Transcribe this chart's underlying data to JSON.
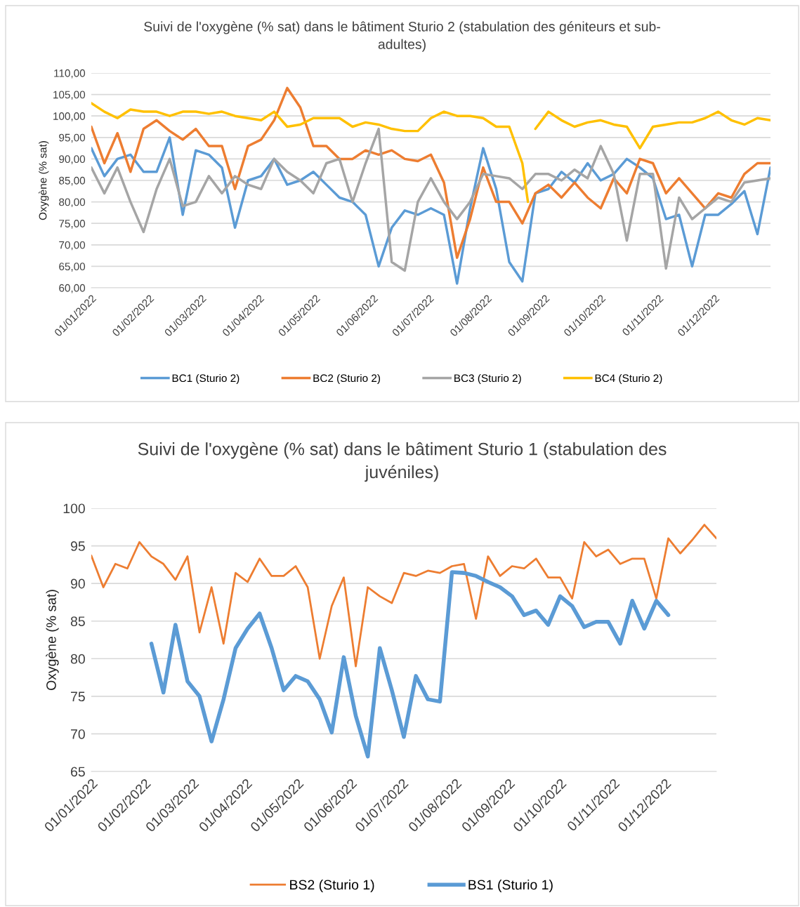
{
  "chart_data": [
    {
      "type": "line",
      "title": "Suivi de l'oxygène (% sat) dans le bâtiment Sturio 2 (stabulation des géniteurs et sub-\nadultes)",
      "ylabel": "Oxygène (% sat)",
      "grid": "y",
      "legend": "bottom",
      "x": [
        "2022-01-01",
        "2022-01-08",
        "2022-01-15",
        "2022-01-22",
        "2022-01-29",
        "2022-02-05",
        "2022-02-12",
        "2022-02-19",
        "2022-02-26",
        "2022-03-05",
        "2022-03-12",
        "2022-03-19",
        "2022-03-26",
        "2022-04-02",
        "2022-04-09",
        "2022-04-16",
        "2022-04-23",
        "2022-04-30",
        "2022-05-07",
        "2022-05-14",
        "2022-05-21",
        "2022-05-28",
        "2022-06-04",
        "2022-06-11",
        "2022-06-18",
        "2022-06-25",
        "2022-07-02",
        "2022-07-09",
        "2022-07-16",
        "2022-07-23",
        "2022-07-30",
        "2022-08-06",
        "2022-08-13",
        "2022-08-20",
        "2022-08-27",
        "2022-09-03",
        "2022-09-10",
        "2022-09-17",
        "2022-09-24",
        "2022-10-01",
        "2022-10-08",
        "2022-10-15",
        "2022-10-22",
        "2022-10-29",
        "2022-11-05",
        "2022-11-12",
        "2022-11-19",
        "2022-11-26",
        "2022-12-03",
        "2022-12-10",
        "2022-12-17",
        "2022-12-24",
        "2022-12-31"
      ],
      "xlim": [
        "2022-01-01",
        "2022-12-31"
      ],
      "xticks": [
        {
          "value": "2022-01-01",
          "label": "01/01/2022"
        },
        {
          "value": "2022-02-01",
          "label": "01/02/2022"
        },
        {
          "value": "2022-03-01",
          "label": "01/03/2022"
        },
        {
          "value": "2022-04-01",
          "label": "01/04/2022"
        },
        {
          "value": "2022-05-01",
          "label": "01/05/2022"
        },
        {
          "value": "2022-06-01",
          "label": "01/06/2022"
        },
        {
          "value": "2022-07-01",
          "label": "01/07/2022"
        },
        {
          "value": "2022-08-01",
          "label": "01/08/2022"
        },
        {
          "value": "2022-09-01",
          "label": "01/09/2022"
        },
        {
          "value": "2022-10-01",
          "label": "01/10/2022"
        },
        {
          "value": "2022-11-01",
          "label": "01/11/2022"
        },
        {
          "value": "2022-12-01",
          "label": "01/12/2022"
        }
      ],
      "ylim": [
        60,
        110
      ],
      "yticks": [
        {
          "value": 60,
          "label": "60,00"
        },
        {
          "value": 65,
          "label": "65,00"
        },
        {
          "value": 70,
          "label": "70,00"
        },
        {
          "value": 75,
          "label": "75,00"
        },
        {
          "value": 80,
          "label": "80,00"
        },
        {
          "value": 85,
          "label": "85,00"
        },
        {
          "value": 90,
          "label": "90,00"
        },
        {
          "value": 95,
          "label": "95,00"
        },
        {
          "value": 100,
          "label": "100,00"
        },
        {
          "value": 105,
          "label": "105,00"
        },
        {
          "value": 110,
          "label": "110,00"
        }
      ],
      "series": [
        {
          "name": "BC1 (Sturio 2)",
          "color": "#5b9bd5",
          "values": [
            92.5,
            86,
            90,
            91,
            87,
            87,
            95,
            77,
            92,
            91,
            88,
            74,
            85,
            86,
            90,
            84,
            85,
            87,
            84,
            81,
            80,
            77,
            65,
            74,
            78,
            77,
            78.5,
            77,
            61,
            78.5,
            92.5,
            83,
            66,
            61.5,
            82,
            83,
            87,
            84.5,
            89,
            85,
            86.5,
            90,
            88,
            85.5,
            76,
            77,
            65,
            77,
            77,
            79.5,
            82.5,
            72.5,
            88
          ]
        },
        {
          "name": "BC2 (Sturio 2)",
          "color": "#ed7d31",
          "values": [
            97.5,
            89,
            96,
            87,
            97,
            99,
            96.5,
            94.5,
            97,
            93,
            93,
            83,
            93,
            94.5,
            99,
            106.5,
            102,
            93,
            93,
            90,
            90,
            92,
            91,
            92,
            90,
            89.5,
            91,
            84.5,
            67,
            76,
            88,
            80,
            80,
            75,
            82,
            84,
            81,
            84.5,
            81,
            78.5,
            85.5,
            82,
            90,
            89,
            82,
            85.5,
            82,
            78.5,
            82,
            81,
            86.5,
            89,
            89
          ]
        },
        {
          "name": "BC3 (Sturio 2)",
          "color": "#a5a5a5",
          "values": [
            88,
            82,
            88,
            80,
            73,
            83,
            90,
            79,
            80,
            86,
            82,
            86,
            84,
            83,
            90,
            87,
            85,
            82,
            89,
            90,
            80,
            89,
            97,
            66,
            64,
            80,
            85.5,
            80,
            76,
            80,
            86.5,
            86,
            85.5,
            83,
            86.5,
            86.5,
            85,
            87.5,
            85.5,
            93,
            86.5,
            71,
            86.5,
            86.5,
            64.5,
            81,
            76,
            78.5,
            81,
            80,
            84.5,
            85,
            85.5
          ]
        },
        {
          "name": "BC4 (Sturio 2)",
          "color": "#ffc000",
          "x": [
            "2022-01-01",
            "2022-01-08",
            "2022-01-15",
            "2022-01-22",
            "2022-01-29",
            "2022-02-05",
            "2022-02-12",
            "2022-02-19",
            "2022-02-26",
            "2022-03-05",
            "2022-03-12",
            "2022-03-19",
            "2022-03-26",
            "2022-04-02",
            "2022-04-09",
            "2022-04-16",
            "2022-04-23",
            "2022-04-30",
            "2022-05-07",
            "2022-05-14",
            "2022-05-21",
            "2022-05-28",
            "2022-06-04",
            "2022-06-11",
            "2022-06-18",
            "2022-06-25",
            "2022-07-02",
            "2022-07-09",
            "2022-07-16",
            "2022-07-23",
            "2022-07-30",
            "2022-08-06",
            "2022-08-13",
            "2022-08-20",
            "2022-08-23",
            "2022-08-25",
            "2022-08-27",
            "2022-09-03",
            "2022-09-10",
            "2022-09-17",
            "2022-09-24",
            "2022-10-01",
            "2022-10-08",
            "2022-10-15",
            "2022-10-22",
            "2022-10-29",
            "2022-11-05",
            "2022-11-12",
            "2022-11-19",
            "2022-11-26",
            "2022-12-03",
            "2022-12-10",
            "2022-12-17",
            "2022-12-24",
            "2022-12-31"
          ],
          "values": [
            103,
            101,
            99.5,
            101.5,
            101,
            101,
            100,
            101,
            101,
            100.5,
            101,
            100,
            99.5,
            99,
            101,
            97.5,
            98,
            99.5,
            99.5,
            99.5,
            97.5,
            98.5,
            98,
            97,
            96.5,
            96.5,
            99.5,
            101,
            100,
            100,
            99.5,
            97.5,
            97.5,
            89,
            80,
            null,
            97,
            101,
            99,
            97.5,
            98.5,
            99,
            98,
            97.5,
            92.5,
            97.5,
            98,
            98.5,
            98.5,
            99.5,
            101,
            99,
            98,
            99.5,
            99
          ]
        }
      ]
    },
    {
      "type": "line",
      "title": "Suivi de l'oxygène (% sat) dans le bâtiment Sturio 1 (stabulation des\njuvéniles)",
      "ylabel": "Oxygène (% sat)",
      "grid": "y",
      "legend": "bottom",
      "x": [
        "2022-01-01",
        "2022-01-08",
        "2022-01-15",
        "2022-01-22",
        "2022-01-29",
        "2022-02-05",
        "2022-02-12",
        "2022-02-19",
        "2022-02-26",
        "2022-03-05",
        "2022-03-12",
        "2022-03-19",
        "2022-03-26",
        "2022-04-02",
        "2022-04-09",
        "2022-04-16",
        "2022-04-23",
        "2022-04-30",
        "2022-05-07",
        "2022-05-14",
        "2022-05-21",
        "2022-05-28",
        "2022-06-04",
        "2022-06-11",
        "2022-06-18",
        "2022-06-25",
        "2022-07-02",
        "2022-07-09",
        "2022-07-16",
        "2022-07-23",
        "2022-07-30",
        "2022-08-06",
        "2022-08-13",
        "2022-08-20",
        "2022-08-27",
        "2022-09-03",
        "2022-09-10",
        "2022-09-17",
        "2022-09-24",
        "2022-10-01",
        "2022-10-08",
        "2022-10-15",
        "2022-10-22",
        "2022-10-29",
        "2022-11-05",
        "2022-11-12",
        "2022-11-19",
        "2022-11-26",
        "2022-12-03",
        "2022-12-10",
        "2022-12-17",
        "2022-12-24",
        "2022-12-31"
      ],
      "xlim": [
        "2022-01-01",
        "2022-12-31"
      ],
      "xticks": [
        {
          "value": "2022-01-01",
          "label": "01/01/2022"
        },
        {
          "value": "2022-02-01",
          "label": "01/02/2022"
        },
        {
          "value": "2022-03-01",
          "label": "01/03/2022"
        },
        {
          "value": "2022-04-01",
          "label": "01/04/2022"
        },
        {
          "value": "2022-05-01",
          "label": "01/05/2022"
        },
        {
          "value": "2022-06-01",
          "label": "01/06/2022"
        },
        {
          "value": "2022-07-01",
          "label": "01/07/2022"
        },
        {
          "value": "2022-08-01",
          "label": "01/08/2022"
        },
        {
          "value": "2022-09-01",
          "label": "01/09/2022"
        },
        {
          "value": "2022-10-01",
          "label": "01/10/2022"
        },
        {
          "value": "2022-11-01",
          "label": "01/11/2022"
        },
        {
          "value": "2022-12-01",
          "label": "01/12/2022"
        }
      ],
      "ylim": [
        65,
        100
      ],
      "yticks": [
        65,
        70,
        75,
        80,
        85,
        90,
        95,
        100
      ],
      "series": [
        {
          "name": "BS2 (Sturio 1)",
          "color": "#ed7d31",
          "values": [
            93.7,
            89.5,
            92.6,
            92,
            95.5,
            93.6,
            92.6,
            90.5,
            93.6,
            83.5,
            89.5,
            82,
            91.4,
            90.2,
            93.3,
            91,
            91,
            92.3,
            89.5,
            80,
            87,
            90.8,
            79,
            89.5,
            88.3,
            87.4,
            91.4,
            91,
            91.7,
            91.4,
            92.3,
            92.6,
            85.3,
            93.6,
            91,
            92.3,
            92,
            93.3,
            90.8,
            90.8,
            88,
            95.5,
            93.6,
            94.5,
            92.6,
            93.3,
            93.3,
            88,
            96,
            94,
            95.8,
            97.8,
            96
          ]
        },
        {
          "name": "BS1 (Sturio 1)",
          "color": "#5b9bd5",
          "values": [
            null,
            null,
            null,
            null,
            null,
            82,
            75.5,
            84.5,
            77,
            75,
            69,
            74.6,
            81.4,
            84,
            86,
            81.4,
            75.8,
            77.7,
            77,
            74.6,
            70.2,
            80.2,
            72.4,
            67,
            81.4,
            75.8,
            69.6,
            77.7,
            74.6,
            74.3,
            91.5,
            91.4,
            91,
            90.2,
            89.5,
            88.3,
            85.8,
            86.4,
            84.5,
            88.3,
            87,
            84.2,
            84.9,
            84.9,
            82,
            87.7,
            84,
            87.7,
            85.8,
            null,
            null,
            null,
            null
          ]
        }
      ]
    }
  ]
}
